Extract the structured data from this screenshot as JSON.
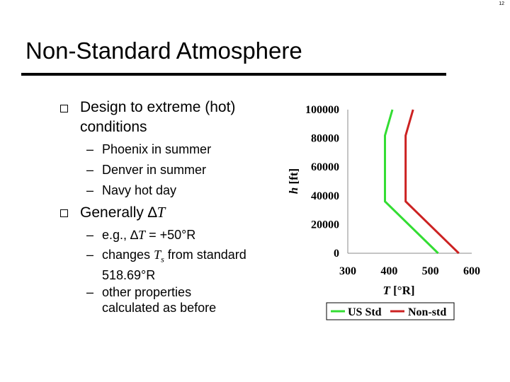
{
  "slide": {
    "page_number": "12",
    "title": "Non-Standard Atmosphere",
    "bullets": [
      {
        "line1": "Design to extreme (hot)",
        "line2": "conditions",
        "subs": [
          "Phoenix in summer",
          "Denver in summer",
          "Navy hot day"
        ]
      },
      {
        "text_prefix": "Generally ",
        "delta": "∆",
        "var": "T",
        "sub1": {
          "prefix": "e.g., ",
          "delta": "∆",
          "var": "T",
          "rest": " = +50°R"
        },
        "sub2": {
          "prefix": "changes ",
          "var": "T",
          "subscript": "s",
          "rest": " from standard",
          "line2": "518.69°R"
        },
        "sub3": {
          "line1": "other properties",
          "line2": "calculated as before"
        }
      }
    ]
  },
  "chart_data": {
    "type": "line",
    "xlabel_var": "T",
    "xlabel_unit": "[°R]",
    "ylabel_var": "h",
    "ylabel_unit": "[ft]",
    "xlim": [
      300,
      600
    ],
    "ylim": [
      0,
      100000
    ],
    "x_ticks": [
      "300",
      "400",
      "500",
      "600"
    ],
    "y_ticks": [
      "0",
      "20000",
      "40000",
      "60000",
      "80000",
      "100000"
    ],
    "series": [
      {
        "name": "US Std",
        "color": "#33dd33",
        "x": [
          518.69,
          389.97,
          389.97,
          408
        ],
        "y": [
          0,
          36089,
          82000,
          100000
        ]
      },
      {
        "name": "Non-std",
        "color": "#cc2222",
        "x": [
          568.69,
          439.97,
          439.97,
          458
        ],
        "y": [
          0,
          36089,
          82000,
          100000
        ]
      }
    ],
    "legend": "bottom"
  }
}
